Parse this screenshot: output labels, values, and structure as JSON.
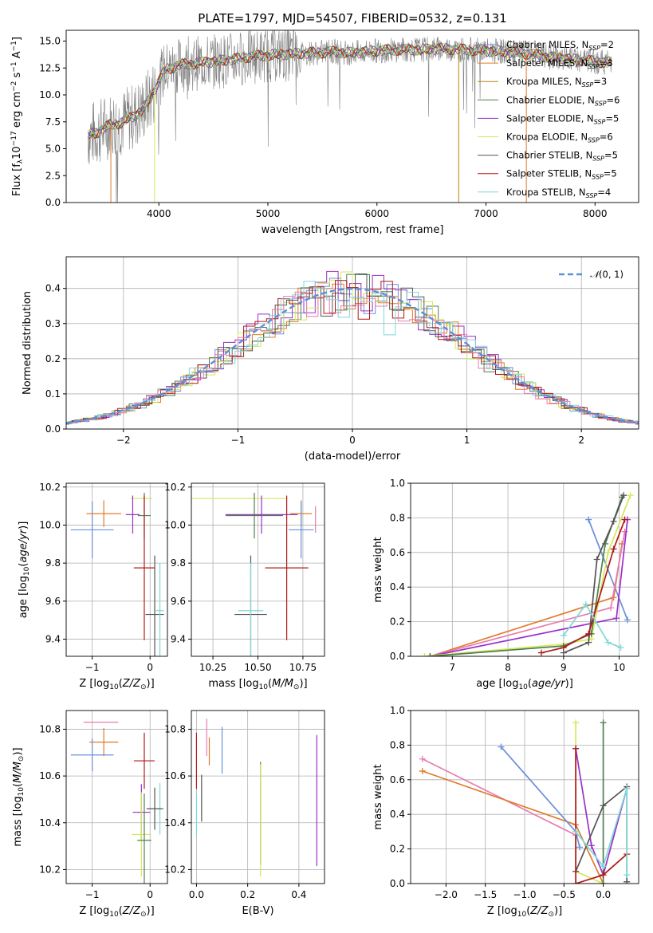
{
  "figure": {
    "title": "PLATE=1797, MJD=54507, FIBERID=0532, z=0.131"
  },
  "colors": {
    "Chabrier MILES": "#6a8fdc",
    "Salpeter MILES": "#e07b2a",
    "Kroupa MILES": "#b8860b",
    "Chabrier ELODIE": "#4f7f4f",
    "Salpeter ELODIE": "#9b30c8",
    "Kroupa ELODIE": "#d4e85a",
    "Chabrier STELIB": "#555555",
    "Salpeter STELIB": "#b01818",
    "Kroupa STELIB": "#7fd8d8",
    "pink": "#e87cb0",
    "data": "#808080",
    "normal": "#5b8fd9"
  },
  "chart_data": [
    {
      "id": "spectrum",
      "type": "line",
      "title": "PLATE=1797, MJD=54507, FIBERID=0532, z=0.131",
      "xlabel": "wavelength [Angstrom, rest frame]",
      "ylabel": "Flux [f_λ 10^-17 erg cm^-2 s^-1 A^-1]",
      "xlim": [
        3150,
        8400
      ],
      "ylim": [
        0,
        16
      ],
      "xticks": [
        4000,
        5000,
        6000,
        7000,
        8000
      ],
      "yticks": [
        0.0,
        2.5,
        5.0,
        7.5,
        10.0,
        12.5,
        15.0
      ],
      "grid": false,
      "legend_position": "top-right",
      "legend": [
        "Chabrier MILES, N_SSP=2",
        "Salpeter MILES, N_SSP=3",
        "Kroupa MILES, N_SSP=3",
        "Chabrier ELODIE, N_SSP=6",
        "Salpeter ELODIE, N_SSP=5",
        "Kroupa ELODIE, N_SSP=6",
        "Chabrier STELIB, N_SSP=5",
        "Salpeter STELIB, N_SSP=5",
        "Kroupa STELIB, N_SSP=4"
      ],
      "continuum_x": [
        3350,
        3450,
        3550,
        3650,
        3750,
        3850,
        3950,
        4050,
        4200,
        4400,
        4600,
        4800,
        5000,
        5200,
        5400,
        5600,
        5800,
        6000,
        6200,
        6400,
        6600,
        6800,
        7000,
        7200,
        7400,
        7600,
        7800,
        8000,
        8150
      ],
      "continuum_y": [
        6.2,
        6.6,
        7.2,
        7.4,
        7.9,
        8.6,
        10.2,
        12.3,
        12.8,
        13.0,
        13.2,
        13.5,
        13.7,
        13.8,
        13.9,
        14.0,
        13.9,
        14.1,
        14.2,
        14.2,
        14.3,
        14.2,
        14.1,
        14.0,
        13.8,
        13.5,
        13.3,
        13.1,
        13.0
      ]
    },
    {
      "id": "residuals",
      "type": "histogram",
      "xlabel": "(data-model)/error",
      "ylabel": "Normed distribution",
      "xlim": [
        -2.5,
        2.5
      ],
      "ylim": [
        0,
        0.49
      ],
      "xticks": [
        -2,
        -1,
        0,
        1,
        2
      ],
      "yticks": [
        0.0,
        0.1,
        0.2,
        0.3,
        0.4
      ],
      "grid": true,
      "legend_position": "top-right",
      "legend": [
        "N(0,1)"
      ]
    },
    {
      "id": "age_vs_Z",
      "type": "errorbar",
      "xlabel": "Z [log10(Z/Z_sun)]",
      "ylabel": "age [log10(age/yr)]",
      "xlim": [
        -1.45,
        0.3
      ],
      "ylim": [
        9.31,
        10.22
      ],
      "xticks": [
        -1,
        0
      ],
      "yticks": [
        9.4,
        9.6,
        9.8,
        10.0,
        10.2
      ],
      "grid": true,
      "points": [
        {
          "s": "Chabrier MILES",
          "x": -1.0,
          "y": 9.975,
          "xerr": 0.37,
          "yerr": 0.15
        },
        {
          "s": "Salpeter MILES",
          "x": -0.8,
          "y": 10.06,
          "xerr": 0.3,
          "yerr": 0.07
        },
        {
          "s": "Kroupa ELODIE",
          "x": -0.15,
          "y": 10.14,
          "xerr": 0.19,
          "yerr": 0.0
        },
        {
          "s": "Chabrier ELODIE",
          "x": -0.1,
          "y": 10.05,
          "xerr": 0.11,
          "yerr": 0.12
        },
        {
          "s": "Salpeter ELODIE",
          "x": -0.3,
          "y": 10.055,
          "xerr": 0.12,
          "yerr": 0.1
        },
        {
          "s": "Salpeter STELIB",
          "x": -0.1,
          "y": 9.775,
          "xerr": 0.18,
          "yerr": 0.38
        },
        {
          "s": "Chabrier STELIB",
          "x": 0.08,
          "y": 9.53,
          "xerr": 0.16,
          "yerr": 0.31
        },
        {
          "s": "Kroupa STELIB",
          "x": 0.17,
          "y": 9.55,
          "xerr": 0.07,
          "yerr": 0.25
        }
      ]
    },
    {
      "id": "age_vs_mass",
      "type": "errorbar",
      "xlabel": "mass [log10(M/M_sun)]",
      "ylabel": "",
      "xlim": [
        10.13,
        10.87
      ],
      "ylim": [
        9.31,
        10.22
      ],
      "xticks": [
        10.25,
        10.5,
        10.75
      ],
      "yticks": [
        9.4,
        9.6,
        9.8,
        10.0,
        10.2
      ],
      "grid": true,
      "points": [
        {
          "s": "Kroupa ELODIE",
          "x": 10.39,
          "y": 10.14,
          "xerr": 0.27,
          "yerr": 0.0
        },
        {
          "s": "Chabrier ELODIE",
          "x": 10.48,
          "y": 10.05,
          "xerr": 0.16,
          "yerr": 0.12
        },
        {
          "s": "Salpeter ELODIE",
          "x": 10.52,
          "y": 10.055,
          "xerr": 0.2,
          "yerr": 0.1
        },
        {
          "s": "Salpeter MILES",
          "x": 10.74,
          "y": 10.06,
          "xerr": 0.06,
          "yerr": 0.07
        },
        {
          "s": "Chabrier MILES",
          "x": 10.74,
          "y": 9.975,
          "xerr": 0.07,
          "yerr": 0.15
        },
        {
          "s": "pink",
          "x": 10.82,
          "y": 10.03,
          "xerr": 0.0,
          "yerr": 0.07
        },
        {
          "s": "Salpeter STELIB",
          "x": 10.66,
          "y": 9.775,
          "xerr": 0.12,
          "yerr": 0.38
        },
        {
          "s": "Chabrier STELIB",
          "x": 10.46,
          "y": 9.53,
          "xerr": 0.09,
          "yerr": 0.31
        },
        {
          "s": "Kroupa STELIB",
          "x": 10.46,
          "y": 9.55,
          "xerr": 0.07,
          "yerr": 0.25
        }
      ]
    },
    {
      "id": "weight_vs_age",
      "type": "line",
      "xlabel": "age [log10(age/yr)]",
      "ylabel": "mass weight",
      "xlim": [
        6.25,
        10.35
      ],
      "ylim": [
        0,
        1
      ],
      "xticks": [
        7,
        8,
        9,
        10
      ],
      "yticks": [
        0.0,
        0.2,
        0.4,
        0.6,
        0.8,
        1.0
      ],
      "grid": true,
      "series": [
        {
          "s": "Chabrier MILES",
          "x": [
            9.45,
            10.15
          ],
          "y": [
            0.79,
            0.21
          ]
        },
        {
          "s": "Salpeter MILES",
          "x": [
            6.6,
            9.9,
            10.05
          ],
          "y": [
            0.0,
            0.34,
            0.65
          ]
        },
        {
          "s": "pink",
          "x": [
            6.6,
            9.85,
            10.1
          ],
          "y": [
            0.0,
            0.28,
            0.72
          ]
        },
        {
          "s": "Salpeter ELODIE",
          "x": [
            6.6,
            9.95,
            10.15
          ],
          "y": [
            0.0,
            0.22,
            0.79
          ]
        },
        {
          "s": "Kroupa ELODIE",
          "x": [
            6.5,
            9.0,
            9.5,
            9.8,
            10.2
          ],
          "y": [
            0.0,
            0.07,
            0.1,
            0.6,
            0.93
          ]
        },
        {
          "s": "Chabrier ELODIE",
          "x": [
            6.6,
            9.0,
            9.5,
            9.75,
            10.05
          ],
          "y": [
            0.0,
            0.06,
            0.13,
            0.65,
            0.92
          ]
        },
        {
          "s": "Chabrier STELIB",
          "x": [
            9.0,
            9.45,
            9.6,
            9.9,
            10.08
          ],
          "y": [
            0.02,
            0.08,
            0.56,
            0.78,
            0.93
          ]
        },
        {
          "s": "Salpeter STELIB",
          "x": [
            8.6,
            9.0,
            9.45,
            9.9,
            10.1
          ],
          "y": [
            0.02,
            0.05,
            0.13,
            0.62,
            0.79
          ]
        },
        {
          "s": "Kroupa STELIB",
          "x": [
            9.0,
            9.4,
            9.8,
            10.03
          ],
          "y": [
            0.12,
            0.3,
            0.08,
            0.05
          ]
        }
      ]
    },
    {
      "id": "mass_vs_Z",
      "type": "errorbar",
      "xlabel": "Z [log10(Z/Z_sun)]",
      "ylabel": "mass [log10(M/M_sun)]",
      "xlim": [
        -1.45,
        0.3
      ],
      "ylim": [
        10.14,
        10.88
      ],
      "xticks": [
        -1,
        0
      ],
      "yticks": [
        10.2,
        10.4,
        10.6,
        10.8
      ],
      "grid": true,
      "points": [
        {
          "s": "pink",
          "x": -0.85,
          "y": 10.83,
          "xerr": 0.3,
          "yerr": 0.0
        },
        {
          "s": "Salpeter MILES",
          "x": -0.8,
          "y": 10.745,
          "xerr": 0.25,
          "yerr": 0.06
        },
        {
          "s": "Chabrier MILES",
          "x": -1.0,
          "y": 10.69,
          "xerr": 0.37,
          "yerr": 0.07
        },
        {
          "s": "Salpeter STELIB",
          "x": -0.1,
          "y": 10.665,
          "xerr": 0.18,
          "yerr": 0.12
        },
        {
          "s": "Kroupa STELIB",
          "x": 0.17,
          "y": 10.46,
          "xerr": 0.07,
          "yerr": 0.11
        },
        {
          "s": "Chabrier STELIB",
          "x": 0.08,
          "y": 10.46,
          "xerr": 0.14,
          "yerr": 0.09
        },
        {
          "s": "Salpeter ELODIE",
          "x": -0.15,
          "y": 10.445,
          "xerr": 0.15,
          "yerr": 0.12
        },
        {
          "s": "Kroupa ELODIE",
          "x": -0.15,
          "y": 10.35,
          "xerr": 0.17,
          "yerr": 0.18
        },
        {
          "s": "Chabrier ELODIE",
          "x": -0.1,
          "y": 10.325,
          "xerr": 0.12,
          "yerr": 0.2
        }
      ]
    },
    {
      "id": "mass_vs_EBV",
      "type": "errorbar",
      "xlabel": "E(B-V)",
      "ylabel": "",
      "xlim": [
        -0.02,
        0.5
      ],
      "ylim": [
        10.14,
        10.88
      ],
      "xticks": [
        0.0,
        0.2,
        0.4
      ],
      "yticks": [
        10.2,
        10.4,
        10.6,
        10.8
      ],
      "grid": true,
      "points": [
        {
          "s": "pink",
          "x": 0.04,
          "y": 10.765,
          "xerr": 0.0,
          "yerr": 0.08
        },
        {
          "s": "Salpeter MILES",
          "x": 0.05,
          "y": 10.705,
          "xerr": 0.0,
          "yerr": 0.06
        },
        {
          "s": "Chabrier MILES",
          "x": 0.1,
          "y": 10.71,
          "xerr": 0.0,
          "yerr": 0.1
        },
        {
          "s": "Salpeter STELIB",
          "x": 0.0,
          "y": 10.665,
          "xerr": 0.0,
          "yerr": 0.12
        },
        {
          "s": "Kroupa STELIB",
          "x": 0.0,
          "y": 10.44,
          "xerr": 0.0,
          "yerr": 0.1
        },
        {
          "s": "Chabrier STELIB",
          "x": 0.02,
          "y": 10.505,
          "xerr": 0.0,
          "yerr": 0.1
        },
        {
          "s": "Chabrier ELODIE",
          "x": 0.25,
          "y": 10.44,
          "xerr": 0.0,
          "yerr": 0.22
        },
        {
          "s": "Kroupa ELODIE",
          "x": 0.25,
          "y": 10.41,
          "xerr": 0.0,
          "yerr": 0.24
        },
        {
          "s": "Salpeter ELODIE",
          "x": 0.47,
          "y": 10.495,
          "xerr": 0.0,
          "yerr": 0.28
        }
      ]
    },
    {
      "id": "weight_vs_Z",
      "type": "line",
      "xlabel": "Z [log10(Z/Z_sun)]",
      "ylabel": "mass weight",
      "xlim": [
        -2.45,
        0.45
      ],
      "ylim": [
        0,
        1
      ],
      "xticks": [
        -2.0,
        -1.5,
        -1.0,
        -0.5,
        0.0
      ],
      "yticks": [
        0.0,
        0.2,
        0.4,
        0.6,
        0.8,
        1.0
      ],
      "grid": true,
      "series": [
        {
          "s": "pink",
          "x": [
            -2.3,
            -0.35
          ],
          "y": [
            0.72,
            0.28
          ]
        },
        {
          "s": "Salpeter MILES",
          "x": [
            -2.3,
            -0.35,
            0.0
          ],
          "y": [
            0.65,
            0.34,
            0.0
          ]
        },
        {
          "s": "Chabrier MILES",
          "x": [
            -1.3,
            -0.35,
            -0.3
          ],
          "y": [
            0.79,
            0.3,
            0.21
          ]
        },
        {
          "s": "Kroupa ELODIE",
          "x": [
            -0.35,
            -0.35,
            0.0
          ],
          "y": [
            0.93,
            0.07,
            0.0
          ]
        },
        {
          "s": "Salpeter ELODIE",
          "x": [
            -0.35,
            -0.15,
            0.0,
            0.3
          ],
          "y": [
            0.78,
            0.22,
            0.05,
            0.55
          ]
        },
        {
          "s": "Chabrier ELODIE",
          "x": [
            0.0,
            0.0
          ],
          "y": [
            0.93,
            0.0
          ]
        },
        {
          "s": "Chabrier STELIB",
          "x": [
            -0.35,
            0.0,
            0.3,
            0.3
          ],
          "y": [
            0.07,
            0.45,
            0.56,
            0.01
          ]
        },
        {
          "s": "Salpeter STELIB",
          "x": [
            -0.35,
            -0.35,
            0.0,
            0.3
          ],
          "y": [
            0.78,
            0.0,
            0.05,
            0.17
          ]
        },
        {
          "s": "Kroupa STELIB",
          "x": [
            -0.35,
            0.0,
            0.3,
            0.3
          ],
          "y": [
            0.3,
            0.1,
            0.55,
            0.05
          ]
        }
      ]
    }
  ]
}
